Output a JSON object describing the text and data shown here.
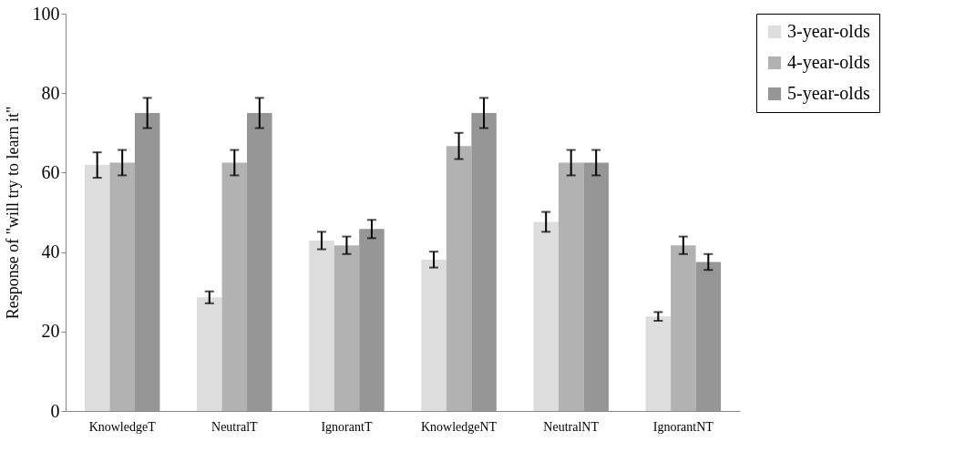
{
  "chart_data": {
    "type": "bar",
    "ylabel": "Response of \"will try to learn it\"",
    "categories": [
      "KnowledgeT",
      "NeutralT",
      "IgnorantT",
      "KnowledgeNT",
      "NeutralNT",
      "IgnorantNT"
    ],
    "series": [
      {
        "name": "3-year-olds",
        "color": "#dddddd",
        "values": [
          61.9,
          28.6,
          42.9,
          38.1,
          47.6,
          23.8
        ],
        "errors": [
          3.2,
          1.5,
          2.2,
          2.0,
          2.5,
          1.1
        ]
      },
      {
        "name": "4-year-olds",
        "color": "#b2b2b2",
        "values": [
          62.5,
          62.5,
          41.7,
          66.7,
          62.5,
          41.7
        ],
        "errors": [
          3.2,
          3.2,
          2.2,
          3.3,
          3.2,
          2.2
        ]
      },
      {
        "name": "5-year-olds",
        "color": "#969696",
        "values": [
          75,
          75,
          45.8,
          75,
          62.5,
          37.5
        ],
        "errors": [
          3.8,
          3.8,
          2.3,
          3.8,
          3.2,
          2.0
        ]
      }
    ],
    "ylim": [
      0,
      100
    ],
    "yticks": [
      0,
      20,
      40,
      60,
      80,
      100
    ],
    "grid": false,
    "legend": "top right"
  }
}
